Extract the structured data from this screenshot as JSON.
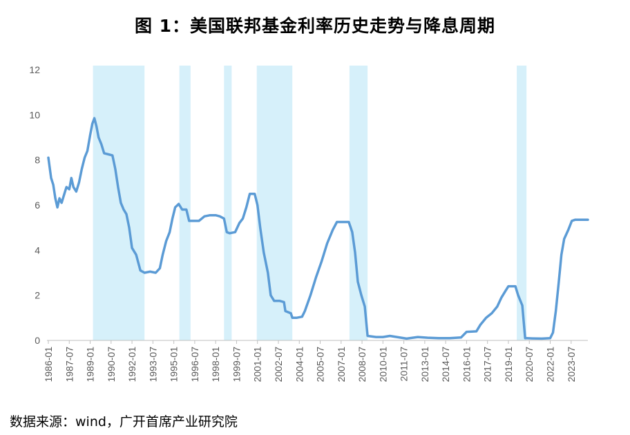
{
  "title": "图 1：美国联邦基金利率历史走势与降息周期",
  "source": "数据来源：wind，广开首席产业研究院",
  "chart_data": {
    "type": "line",
    "ylim": [
      0,
      12
    ],
    "yticks": [
      "0",
      "2",
      "4",
      "6",
      "8",
      "10",
      "12"
    ],
    "xlim": [
      1986.0,
      2024.7
    ],
    "xticks": [
      "1986-01",
      "1987-07",
      "1989-01",
      "1990-07",
      "1992-01",
      "1993-07",
      "1995-01",
      "1996-07",
      "1998-01",
      "1999-07",
      "2001-01",
      "2002-07",
      "2004-01",
      "2005-07",
      "2007-01",
      "2008-07",
      "2010-01",
      "2011-07",
      "2013-01",
      "2014-07",
      "2016-01",
      "2017-07",
      "2019-01",
      "2020-07",
      "2022-01",
      "2023-07"
    ],
    "series": [
      {
        "color": "#5b9bd5",
        "points": [
          [
            1986.0,
            8.1
          ],
          [
            1986.2,
            7.2
          ],
          [
            1986.35,
            6.9
          ],
          [
            1986.5,
            6.3
          ],
          [
            1986.65,
            5.9
          ],
          [
            1986.8,
            6.3
          ],
          [
            1986.95,
            6.1
          ],
          [
            1987.1,
            6.4
          ],
          [
            1987.3,
            6.8
          ],
          [
            1987.5,
            6.7
          ],
          [
            1987.65,
            7.2
          ],
          [
            1987.8,
            6.8
          ],
          [
            1988.0,
            6.6
          ],
          [
            1988.2,
            7.0
          ],
          [
            1988.4,
            7.6
          ],
          [
            1988.6,
            8.1
          ],
          [
            1988.8,
            8.4
          ],
          [
            1989.0,
            9.1
          ],
          [
            1989.15,
            9.6
          ],
          [
            1989.3,
            9.85
          ],
          [
            1989.45,
            9.5
          ],
          [
            1989.6,
            9.0
          ],
          [
            1989.8,
            8.7
          ],
          [
            1990.0,
            8.3
          ],
          [
            1990.3,
            8.25
          ],
          [
            1990.6,
            8.2
          ],
          [
            1990.8,
            7.6
          ],
          [
            1991.0,
            6.8
          ],
          [
            1991.2,
            6.1
          ],
          [
            1991.4,
            5.8
          ],
          [
            1991.6,
            5.6
          ],
          [
            1991.8,
            5.0
          ],
          [
            1992.0,
            4.1
          ],
          [
            1992.3,
            3.8
          ],
          [
            1992.6,
            3.1
          ],
          [
            1992.9,
            3.0
          ],
          [
            1993.3,
            3.05
          ],
          [
            1993.7,
            3.0
          ],
          [
            1994.0,
            3.2
          ],
          [
            1994.2,
            3.8
          ],
          [
            1994.45,
            4.4
          ],
          [
            1994.7,
            4.8
          ],
          [
            1994.9,
            5.4
          ],
          [
            1995.1,
            5.9
          ],
          [
            1995.35,
            6.05
          ],
          [
            1995.6,
            5.8
          ],
          [
            1995.9,
            5.8
          ],
          [
            1996.1,
            5.3
          ],
          [
            1996.4,
            5.3
          ],
          [
            1996.8,
            5.3
          ],
          [
            1997.2,
            5.5
          ],
          [
            1997.6,
            5.55
          ],
          [
            1998.0,
            5.55
          ],
          [
            1998.3,
            5.5
          ],
          [
            1998.6,
            5.4
          ],
          [
            1998.8,
            4.8
          ],
          [
            1999.0,
            4.75
          ],
          [
            1999.4,
            4.8
          ],
          [
            1999.7,
            5.2
          ],
          [
            1999.95,
            5.4
          ],
          [
            2000.2,
            5.9
          ],
          [
            2000.45,
            6.5
          ],
          [
            2000.8,
            6.5
          ],
          [
            2001.0,
            6.0
          ],
          [
            2001.2,
            5.0
          ],
          [
            2001.45,
            3.9
          ],
          [
            2001.75,
            3.0
          ],
          [
            2001.95,
            2.0
          ],
          [
            2002.2,
            1.75
          ],
          [
            2002.6,
            1.75
          ],
          [
            2002.9,
            1.7
          ],
          [
            2003.0,
            1.3
          ],
          [
            2003.4,
            1.2
          ],
          [
            2003.5,
            1.0
          ],
          [
            2003.8,
            1.0
          ],
          [
            2004.2,
            1.05
          ],
          [
            2004.4,
            1.3
          ],
          [
            2004.8,
            2.0
          ],
          [
            2005.2,
            2.8
          ],
          [
            2005.6,
            3.5
          ],
          [
            2006.0,
            4.3
          ],
          [
            2006.4,
            4.9
          ],
          [
            2006.7,
            5.25
          ],
          [
            2007.0,
            5.25
          ],
          [
            2007.55,
            5.25
          ],
          [
            2007.8,
            4.8
          ],
          [
            2008.0,
            3.9
          ],
          [
            2008.2,
            2.6
          ],
          [
            2008.45,
            2.0
          ],
          [
            2008.7,
            1.5
          ],
          [
            2008.9,
            0.2
          ],
          [
            2009.5,
            0.15
          ],
          [
            2010.0,
            0.15
          ],
          [
            2010.5,
            0.2
          ],
          [
            2011.0,
            0.15
          ],
          [
            2011.7,
            0.08
          ],
          [
            2012.5,
            0.15
          ],
          [
            2013.2,
            0.12
          ],
          [
            2014.0,
            0.1
          ],
          [
            2014.8,
            0.1
          ],
          [
            2015.6,
            0.13
          ],
          [
            2016.0,
            0.38
          ],
          [
            2016.7,
            0.4
          ],
          [
            2017.0,
            0.7
          ],
          [
            2017.4,
            1.0
          ],
          [
            2017.8,
            1.2
          ],
          [
            2018.2,
            1.5
          ],
          [
            2018.5,
            1.9
          ],
          [
            2018.8,
            2.2
          ],
          [
            2019.0,
            2.4
          ],
          [
            2019.5,
            2.4
          ],
          [
            2019.7,
            2.0
          ],
          [
            2020.0,
            1.55
          ],
          [
            2020.2,
            0.1
          ],
          [
            2020.7,
            0.09
          ],
          [
            2021.4,
            0.08
          ],
          [
            2022.0,
            0.1
          ],
          [
            2022.2,
            0.35
          ],
          [
            2022.4,
            1.3
          ],
          [
            2022.6,
            2.5
          ],
          [
            2022.8,
            3.8
          ],
          [
            2023.0,
            4.5
          ],
          [
            2023.3,
            4.9
          ],
          [
            2023.55,
            5.3
          ],
          [
            2023.8,
            5.35
          ],
          [
            2024.7,
            5.35
          ]
        ]
      }
    ],
    "shaded_periods": [
      [
        1989.2,
        1992.9
      ],
      [
        1995.4,
        1996.2
      ],
      [
        1998.6,
        1999.15
      ],
      [
        2000.95,
        2003.5
      ],
      [
        2007.6,
        2008.9
      ],
      [
        2019.6,
        2020.3
      ]
    ],
    "shade_color": "#d6f0fa"
  }
}
